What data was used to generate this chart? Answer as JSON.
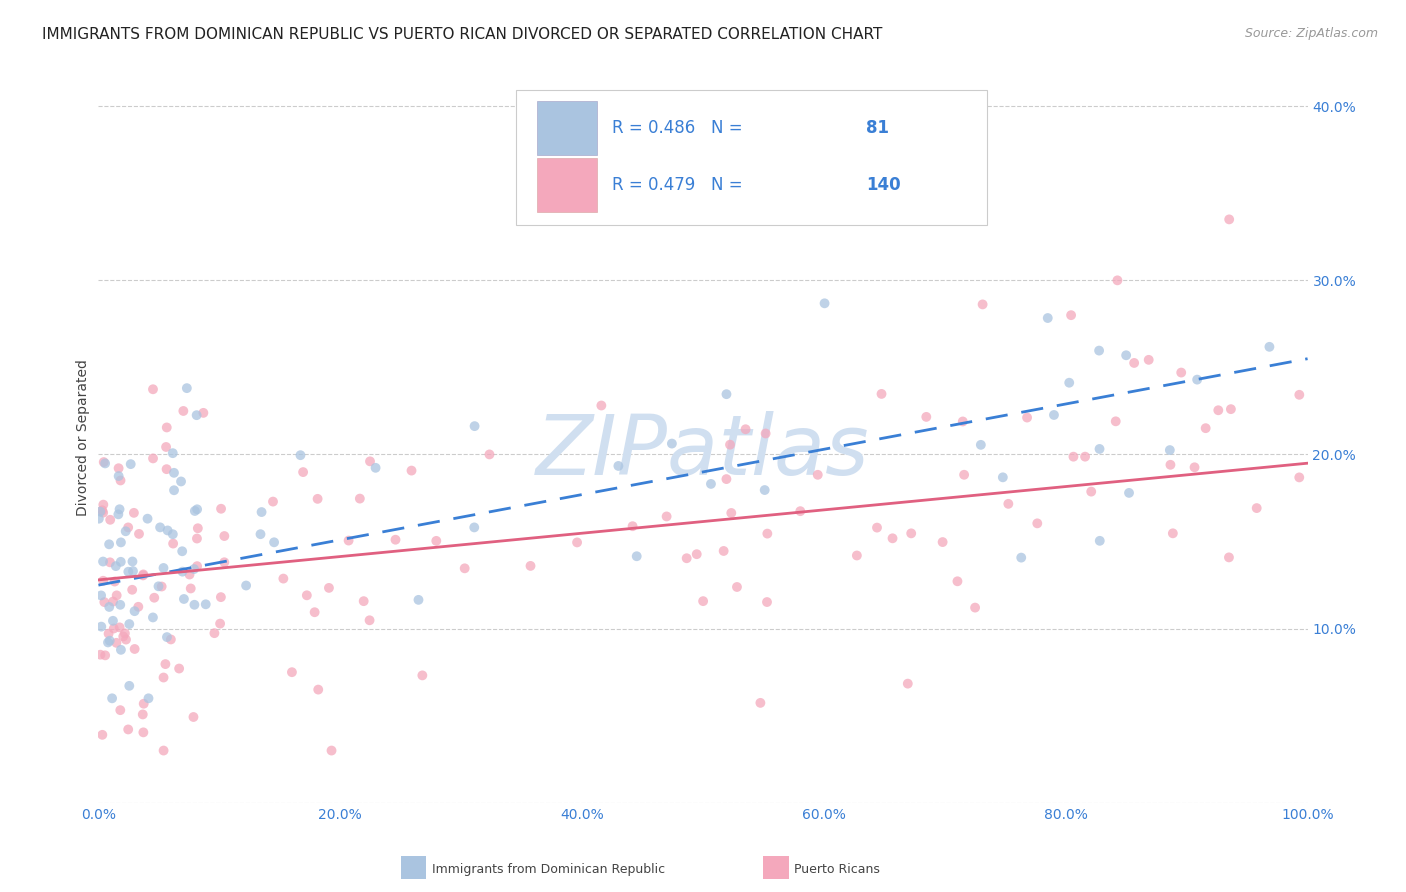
{
  "title": "IMMIGRANTS FROM DOMINICAN REPUBLIC VS PUERTO RICAN DIVORCED OR SEPARATED CORRELATION CHART",
  "source": "Source: ZipAtlas.com",
  "ylabel": "Divorced or Separated",
  "watermark": "ZIPatlas",
  "blue_R": 0.486,
  "blue_N": 81,
  "pink_R": 0.479,
  "pink_N": 140,
  "xlim": [
    0,
    1
  ],
  "ylim": [
    0,
    0.42
  ],
  "blue_color": "#aac4e0",
  "pink_color": "#f4a8bc",
  "blue_line_color": "#3a7fd5",
  "pink_line_color": "#e06080",
  "text_blue_color": "#3a7fd5",
  "grid_color": "#cccccc",
  "background_color": "#ffffff",
  "title_fontsize": 11,
  "source_fontsize": 9,
  "legend_fontsize": 12,
  "axis_tick_fontsize": 10,
  "watermark_color": "#d0dff0",
  "watermark_fontsize": 60,
  "blue_trend_start_x": 0.0,
  "blue_trend_end_x": 1.0,
  "blue_trend_start_y": 0.125,
  "blue_trend_end_y": 0.255,
  "pink_trend_start_x": 0.0,
  "pink_trend_end_x": 1.0,
  "pink_trend_start_y": 0.128,
  "pink_trend_end_y": 0.195
}
